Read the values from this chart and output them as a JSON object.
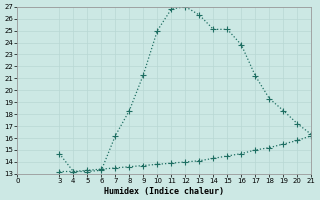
{
  "xlabel": "Humidex (Indice chaleur)",
  "background_color": "#cce8e4",
  "line_color": "#1e6e62",
  "grid_color": "#b8d8d4",
  "xlim": [
    0,
    21
  ],
  "ylim": [
    13,
    27
  ],
  "xticks": [
    0,
    3,
    4,
    5,
    6,
    7,
    8,
    9,
    10,
    11,
    12,
    13,
    14,
    15,
    16,
    17,
    18,
    19,
    20,
    21
  ],
  "yticks": [
    13,
    14,
    15,
    16,
    17,
    18,
    19,
    20,
    21,
    22,
    23,
    24,
    25,
    26,
    27
  ],
  "curve1_x": [
    3,
    4,
    5,
    6,
    7,
    8,
    9,
    10,
    11,
    12,
    13,
    14,
    15,
    16,
    17,
    18,
    19,
    20,
    21
  ],
  "curve1_y": [
    14.7,
    13.2,
    13.2,
    13.3,
    16.2,
    18.3,
    21.3,
    25.0,
    26.8,
    27.0,
    26.3,
    25.1,
    25.1,
    23.8,
    21.2,
    19.3,
    18.3,
    17.2,
    16.3
  ],
  "curve2_x": [
    3,
    4,
    5,
    6,
    7,
    8,
    9,
    10,
    11,
    12,
    13,
    14,
    15,
    16,
    17,
    18,
    19,
    20,
    21
  ],
  "curve2_y": [
    13.2,
    13.2,
    13.3,
    13.4,
    13.5,
    13.6,
    13.7,
    13.8,
    13.9,
    14.0,
    14.1,
    14.3,
    14.5,
    14.7,
    15.0,
    15.2,
    15.5,
    15.8,
    16.2
  ],
  "marker": "+",
  "markersize": 4,
  "linewidth": 0.9
}
